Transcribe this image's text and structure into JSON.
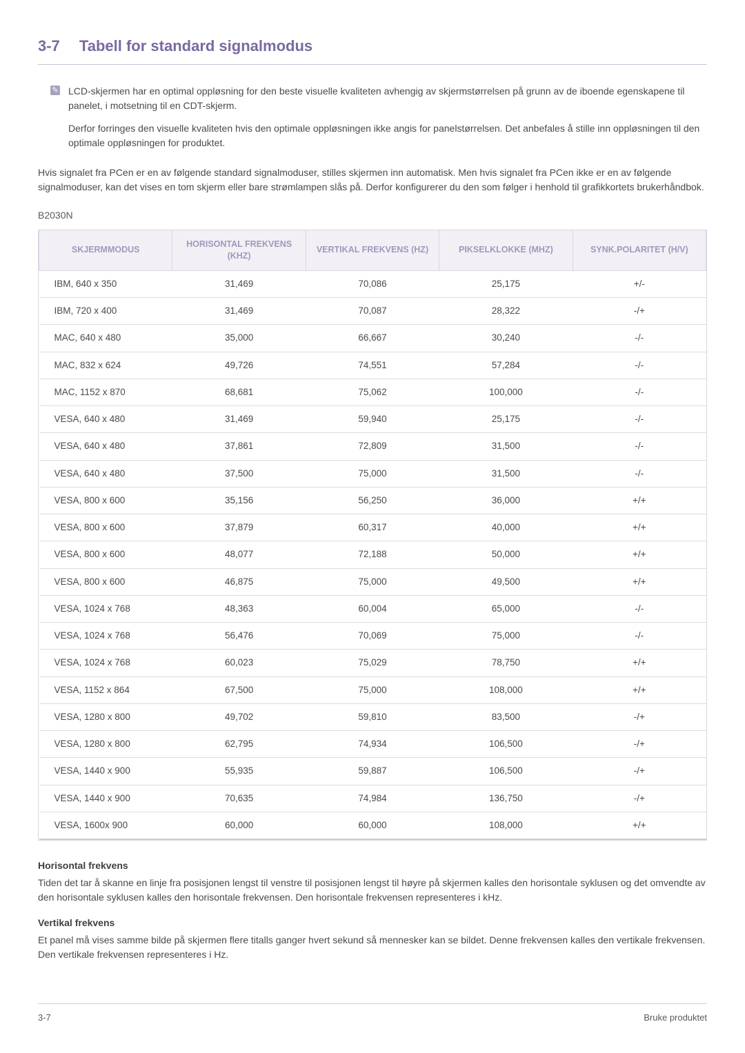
{
  "header": {
    "number": "3-7",
    "title": "Tabell for standard signalmodus"
  },
  "note": {
    "p1": "LCD-skjermen har en optimal oppløsning for den beste visuelle kvaliteten avhengig av skjermstørrelsen på grunn av de iboende egenskapene til panelet, i motsetning til en CDT-skjerm.",
    "p2": "Derfor forringes den visuelle kvaliteten hvis den optimale oppløsningen ikke angis for panelstørrelsen. Det anbefales å stille inn oppløsningen til den optimale oppløsningen for produktet."
  },
  "intro": "Hvis signalet fra PCen er en av følgende standard signalmoduser, stilles skjermen inn automatisk. Men hvis signalet fra PCen ikke er en av følgende signalmoduser, kan det vises en tom skjerm eller bare strømlampen slås på. Derfor konfigurerer du den som følger i henhold til grafikkortets brukerhåndbok.",
  "model": "B2030N",
  "table": {
    "columns": [
      "SKJERMMODUS",
      "HORISONTAL FREKVENS (KHZ)",
      "VERTIKAL FREKVENS (HZ)",
      "PIKSELKLOKKE (MHZ)",
      "SYNK.POLARITET (H/V)"
    ],
    "rows": [
      [
        "IBM, 640 x 350",
        "31,469",
        "70,086",
        "25,175",
        "+/-"
      ],
      [
        "IBM, 720 x 400",
        "31,469",
        "70,087",
        "28,322",
        "-/+"
      ],
      [
        "MAC, 640 x 480",
        "35,000",
        "66,667",
        "30,240",
        "-/-"
      ],
      [
        "MAC, 832 x 624",
        "49,726",
        "74,551",
        "57,284",
        "-/-"
      ],
      [
        "MAC, 1152 x 870",
        "68,681",
        "75,062",
        "100,000",
        "-/-"
      ],
      [
        "VESA, 640 x 480",
        "31,469",
        "59,940",
        "25,175",
        "-/-"
      ],
      [
        "VESA, 640 x 480",
        "37,861",
        "72,809",
        "31,500",
        "-/-"
      ],
      [
        "VESA, 640 x 480",
        "37,500",
        "75,000",
        "31,500",
        "-/-"
      ],
      [
        "VESA, 800 x 600",
        "35,156",
        "56,250",
        "36,000",
        "+/+"
      ],
      [
        "VESA, 800 x 600",
        "37,879",
        "60,317",
        "40,000",
        "+/+"
      ],
      [
        "VESA, 800 x 600",
        "48,077",
        "72,188",
        "50,000",
        "+/+"
      ],
      [
        "VESA, 800 x 600",
        "46,875",
        "75,000",
        "49,500",
        "+/+"
      ],
      [
        "VESA, 1024 x 768",
        "48,363",
        "60,004",
        "65,000",
        "-/-"
      ],
      [
        "VESA, 1024 x 768",
        "56,476",
        "70,069",
        "75,000",
        "-/-"
      ],
      [
        "VESA, 1024 x 768",
        "60,023",
        "75,029",
        "78,750",
        "+/+"
      ],
      [
        "VESA, 1152 x 864",
        "67,500",
        "75,000",
        "108,000",
        "+/+"
      ],
      [
        "VESA, 1280 x 800",
        "49,702",
        "59,810",
        "83,500",
        "-/+"
      ],
      [
        "VESA, 1280 x 800",
        "62,795",
        "74,934",
        "106,500",
        "-/+"
      ],
      [
        "VESA, 1440 x 900",
        "55,935",
        "59,887",
        "106,500",
        "-/+"
      ],
      [
        "VESA, 1440 x 900",
        "70,635",
        "74,984",
        "136,750",
        "-/+"
      ],
      [
        "VESA, 1600x 900",
        "60,000",
        "60,000",
        "108,000",
        "+/+"
      ]
    ]
  },
  "defs": {
    "h_title": "Horisontal frekvens",
    "h_body": "Tiden det tar å skanne en linje fra posisjonen lengst til venstre til posisjonen lengst til høyre på skjermen kalles den horisontale syklusen og det omvendte av den horisontale syklusen kalles den horisontale frekvensen. Den horisontale frekvensen representeres i kHz.",
    "v_title": "Vertikal frekvens",
    "v_body": "Et panel må vises samme bilde på skjermen flere titalls ganger hvert sekund så mennesker kan se bildet. Denne frekvensen kalles den vertikale frekvensen. Den vertikale frekvensen representeres i Hz."
  },
  "footer": {
    "left": "3-7",
    "right": "Bruke produktet"
  }
}
